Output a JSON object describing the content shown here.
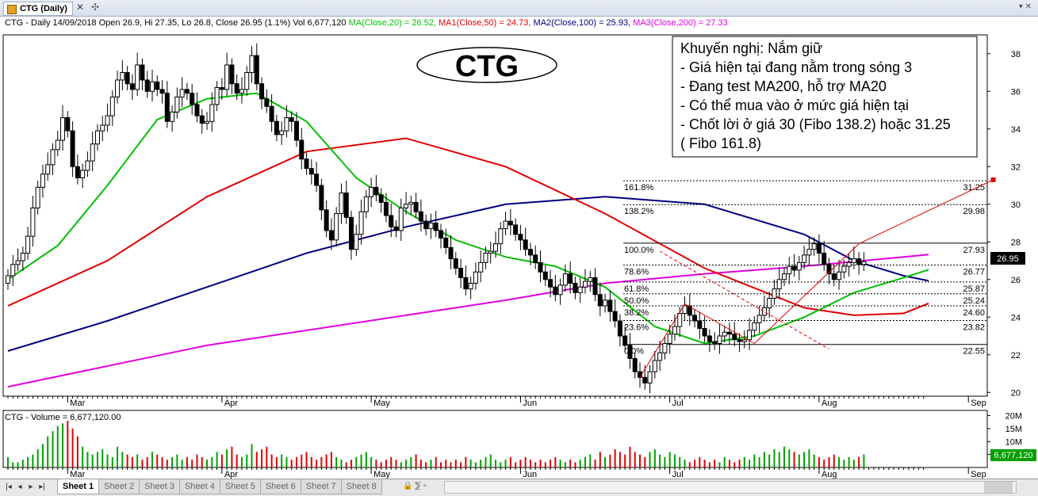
{
  "window": {
    "tab_title": "CTG (Daily)",
    "close_glyph": "✕",
    "add_glyph": "✣",
    "menu_glyph": "▾ ✕"
  },
  "header": {
    "line_prefix": "CTG - Daily 14/09/2018 Open 26.9, Hi 27.35, Lo 26.8, Close 26.95 (1.1%) Vol 6,677,120 ",
    "ma": "MA(Close,20) = 26.52, ",
    "ma1": "MA1(Close,50) = 24.73, ",
    "ma2": "MA2(Close,100) = 25.93, ",
    "ma3": "MA3(Close,200) = 27.33"
  },
  "annotation": {
    "logo_text": "CTG",
    "recommendation": [
      "Khuyến nghị: Nắm giữ",
      "- Giá hiện tại đang nằm trong sóng 3",
      "- Đang test MA200, hỗ trợ MA20",
      "- Có thể mua vào ở mức giá hiện tại",
      "- Chốt lời ở giá 30 (Fibo 138.2) hoặc 31.25",
      "( Fibo 161.8)"
    ]
  },
  "volume_header": "CTG - Volume = 6,677,120.00",
  "last_price_badge": "26.95",
  "last_volume_badge": "6,677,120",
  "bottom": {
    "nav": [
      "|◂",
      "◂",
      "▸",
      "▸|"
    ],
    "sheets": [
      "Sheet 1",
      "Sheet 2",
      "Sheet 3",
      "Sheet 4",
      "Sheet 5",
      "Sheet 6",
      "Sheet 7",
      "Sheet 8"
    ],
    "tools": "🔒 ⅀ ▫"
  },
  "colors": {
    "up": "#000000",
    "down": "#000000",
    "ma20": "#00c000",
    "ma50": "#e00000",
    "ma100": "#000080",
    "ma200": "#e000e0",
    "vol_up": "#00a000",
    "vol_down": "#e00000"
  },
  "chart_data": {
    "type": "candlestick",
    "price_axis": {
      "ticks": [
        20,
        22,
        24,
        26,
        28,
        30,
        32,
        34,
        36,
        38
      ],
      "ylim": [
        19.8,
        39.0
      ]
    },
    "volume_axis": {
      "ticks": [
        "20M",
        "15M",
        "10M",
        "5M"
      ],
      "tick_values": [
        20,
        15,
        10,
        5
      ],
      "ylim": [
        0,
        22
      ]
    },
    "month_labels": [
      "Mar",
      "Apr",
      "May",
      "Jun",
      "Jul",
      "Aug",
      "Sep"
    ],
    "month_label_index": [
      12,
      43,
      73,
      103,
      133,
      163,
      193
    ],
    "closes": [
      26.2,
      26.8,
      27.0,
      27.4,
      28.3,
      29.8,
      30.9,
      31.6,
      32.1,
      32.9,
      33.4,
      34.6,
      33.9,
      32.0,
      31.4,
      31.8,
      32.3,
      33.2,
      33.9,
      34.2,
      34.7,
      35.7,
      36.6,
      37.0,
      36.4,
      36.1,
      37.4,
      36.6,
      36.0,
      36.5,
      36.1,
      35.9,
      34.4,
      34.9,
      35.7,
      36.1,
      35.9,
      35.3,
      34.7,
      34.3,
      34.4,
      35.3,
      36.2,
      36.1,
      37.4,
      36.4,
      35.9,
      36.1,
      37.0,
      37.9,
      36.4,
      35.6,
      35.2,
      34.4,
      33.7,
      33.9,
      34.6,
      34.4,
      33.4,
      32.4,
      31.9,
      31.6,
      31.0,
      29.7,
      28.6,
      28.1,
      29.5,
      30.6,
      29.3,
      27.6,
      28.4,
      29.6,
      30.4,
      30.9,
      30.5,
      30.1,
      29.4,
      28.8,
      28.6,
      29.8,
      30.0,
      30.1,
      29.6,
      29.1,
      28.7,
      29.0,
      28.6,
      28.2,
      27.7,
      27.1,
      26.6,
      26.1,
      25.5,
      25.8,
      26.4,
      26.9,
      27.4,
      27.5,
      27.9,
      28.7,
      29.1,
      28.9,
      28.4,
      28.1,
      27.6,
      27.3,
      26.9,
      26.4,
      26.0,
      25.6,
      25.2,
      25.7,
      26.3,
      25.8,
      25.3,
      25.6,
      25.9,
      26.1,
      25.2,
      24.6,
      24.9,
      24.3,
      23.8,
      23.0,
      22.5,
      21.8,
      21.1,
      20.8,
      20.5,
      21.1,
      21.7,
      22.1,
      22.6,
      23.1,
      23.5,
      24.2,
      24.6,
      24.1,
      23.8,
      23.4,
      23.0,
      22.7,
      22.6,
      23.0,
      23.2,
      23.1,
      22.8,
      22.7,
      22.8,
      23.3,
      23.7,
      24.1,
      24.5,
      25.0,
      25.5,
      26.0,
      26.3,
      26.7,
      26.5,
      26.9,
      27.3,
      27.6,
      27.9,
      27.4,
      26.8,
      26.3,
      26.0,
      26.4,
      26.7,
      26.9,
      27.1,
      26.8,
      26.95
    ],
    "ma_periods": [
      20,
      50,
      100,
      200
    ],
    "ma20": [
      {
        "i": 0,
        "v": 26.0
      },
      {
        "i": 10,
        "v": 27.8
      },
      {
        "i": 20,
        "v": 31.0
      },
      {
        "i": 30,
        "v": 34.5
      },
      {
        "i": 40,
        "v": 35.6
      },
      {
        "i": 50,
        "v": 35.9
      },
      {
        "i": 60,
        "v": 34.4
      },
      {
        "i": 70,
        "v": 31.4
      },
      {
        "i": 80,
        "v": 29.6
      },
      {
        "i": 90,
        "v": 28.1
      },
      {
        "i": 100,
        "v": 27.2
      },
      {
        "i": 110,
        "v": 26.7
      },
      {
        "i": 120,
        "v": 25.6
      },
      {
        "i": 130,
        "v": 23.5
      },
      {
        "i": 140,
        "v": 22.6
      },
      {
        "i": 150,
        "v": 23.0
      },
      {
        "i": 160,
        "v": 24.0
      },
      {
        "i": 170,
        "v": 25.3
      },
      {
        "i": 180,
        "v": 26.1
      },
      {
        "i": 185,
        "v": 26.52
      }
    ],
    "ma50": [
      {
        "i": 0,
        "v": 24.6
      },
      {
        "i": 20,
        "v": 27.0
      },
      {
        "i": 40,
        "v": 30.4
      },
      {
        "i": 60,
        "v": 32.8
      },
      {
        "i": 80,
        "v": 33.5
      },
      {
        "i": 100,
        "v": 32.0
      },
      {
        "i": 120,
        "v": 29.5
      },
      {
        "i": 140,
        "v": 26.6
      },
      {
        "i": 160,
        "v": 24.5
      },
      {
        "i": 170,
        "v": 24.1
      },
      {
        "i": 180,
        "v": 24.2
      },
      {
        "i": 185,
        "v": 24.73
      }
    ],
    "ma100": [
      {
        "i": 0,
        "v": 22.2
      },
      {
        "i": 20,
        "v": 23.8
      },
      {
        "i": 40,
        "v": 25.6
      },
      {
        "i": 60,
        "v": 27.4
      },
      {
        "i": 80,
        "v": 28.8
      },
      {
        "i": 100,
        "v": 30.0
      },
      {
        "i": 120,
        "v": 30.4
      },
      {
        "i": 140,
        "v": 30.0
      },
      {
        "i": 160,
        "v": 28.4
      },
      {
        "i": 170,
        "v": 27.0
      },
      {
        "i": 180,
        "v": 26.2
      },
      {
        "i": 185,
        "v": 25.93
      }
    ],
    "ma200": [
      {
        "i": 0,
        "v": 20.3
      },
      {
        "i": 40,
        "v": 22.5
      },
      {
        "i": 80,
        "v": 24.1
      },
      {
        "i": 100,
        "v": 24.9
      },
      {
        "i": 120,
        "v": 25.8
      },
      {
        "i": 140,
        "v": 26.3
      },
      {
        "i": 160,
        "v": 26.7
      },
      {
        "i": 180,
        "v": 27.2
      },
      {
        "i": 185,
        "v": 27.33
      }
    ],
    "fibonacci": [
      {
        "label": "161.8%",
        "value": 31.25
      },
      {
        "label": "138.2%",
        "value": 29.98
      },
      {
        "label": "100.0%",
        "value": 27.93
      },
      {
        "label": "78.6%",
        "value": 26.77
      },
      {
        "label": "61.8%",
        "value": 25.87
      },
      {
        "label": "50.0%",
        "value": 25.24
      },
      {
        "label": "38.2%",
        "value": 24.6
      },
      {
        "label": "23.6%",
        "value": 23.82
      },
      {
        "label": "0.0%",
        "value": 22.55
      }
    ],
    "fib_value_labels": [
      "31.25",
      "29.98",
      "27.93",
      "26.77",
      "25.87",
      "25.24",
      "24.60",
      "23.82",
      "22.55"
    ],
    "trend_lines": [
      {
        "from": {
          "i": 127,
          "v": 20.8
        },
        "to": {
          "i": 136,
          "v": 24.7
        },
        "style": "solid"
      },
      {
        "from": {
          "i": 136,
          "v": 24.7
        },
        "to": {
          "i": 150,
          "v": 22.6
        },
        "style": "solid"
      },
      {
        "from": {
          "i": 150,
          "v": 22.6
        },
        "to": {
          "i": 171,
          "v": 27.9
        },
        "style": "solid"
      },
      {
        "from": {
          "i": 171,
          "v": 27.9
        },
        "to": {
          "i": 198,
          "v": 31.3
        },
        "style": "solid"
      },
      {
        "from": {
          "i": 131,
          "v": 27.5
        },
        "to": {
          "i": 165,
          "v": 22.3
        },
        "style": "dashed"
      }
    ],
    "volume_millions": [
      4,
      2,
      2,
      3,
      4,
      5,
      7,
      9,
      12,
      14,
      16,
      17,
      18,
      15,
      12,
      8,
      6,
      5,
      6,
      7,
      5,
      4,
      8,
      6,
      5,
      4,
      5,
      3,
      4,
      6,
      5,
      4,
      3,
      4,
      5,
      3,
      4,
      3,
      5,
      4,
      3,
      4,
      6,
      5,
      7,
      8,
      5,
      4,
      5,
      9,
      6,
      7,
      8,
      5,
      4,
      5,
      4,
      3,
      4,
      5,
      6,
      4,
      3,
      4,
      5,
      6,
      4,
      3,
      2,
      3,
      4,
      5,
      6,
      4,
      3,
      2,
      3,
      4,
      3,
      2,
      3,
      4,
      5,
      3,
      2,
      3,
      4,
      2,
      3,
      2,
      3,
      2,
      4,
      3,
      2,
      3,
      4,
      5,
      3,
      2,
      3,
      4,
      2,
      3,
      4,
      3,
      2,
      3,
      2,
      3,
      4,
      3,
      2,
      3,
      2,
      3,
      4,
      5,
      3,
      6,
      4,
      5,
      7,
      6,
      5,
      8,
      6,
      5,
      4,
      6,
      7,
      5,
      4,
      6,
      5,
      4,
      3,
      2,
      3,
      4,
      3,
      2,
      3,
      2,
      4,
      3,
      2,
      3,
      4,
      3,
      5,
      4,
      6,
      5,
      7,
      6,
      8,
      7,
      6,
      5,
      6,
      7,
      5,
      4,
      3,
      4,
      5,
      4,
      3,
      4,
      3,
      4,
      5,
      4,
      3,
      4,
      5,
      4,
      3,
      5,
      4,
      6.7
    ]
  }
}
